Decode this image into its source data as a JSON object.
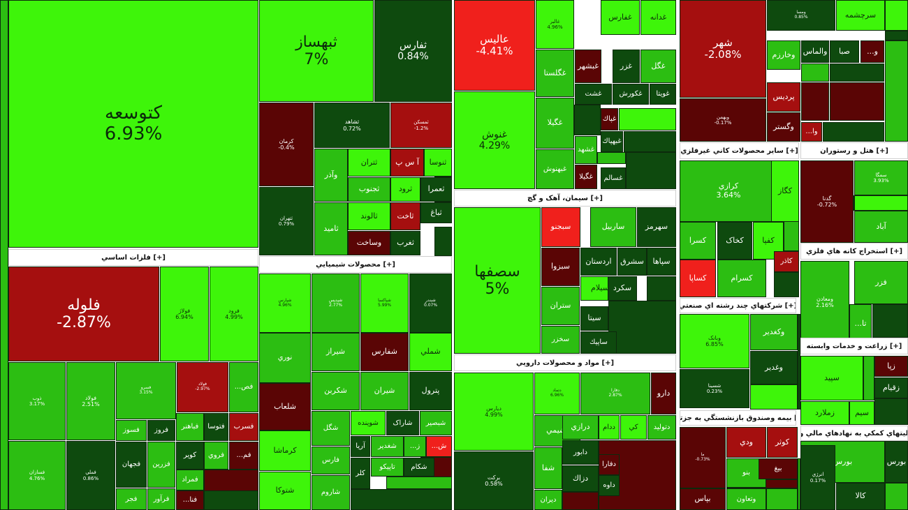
{
  "colors": {
    "bright_green": "#3ef50a",
    "green": "#2cbe12",
    "mid_green": "#1f8f1f",
    "dark_green": "#0e4a0e",
    "dark_red": "#5a0505",
    "red": "#a50f0f",
    "bright_red": "#f0201c"
  },
  "sectors": [
    {
      "label": "[+] فلزات اساسي"
    },
    {
      "label": "[+] محصولات شيميايي"
    },
    {
      "label": "[+] سيمان، آهک و گچ"
    },
    {
      "label": "[+] مواد و محصولات دارويي"
    },
    {
      "label": "[+] ساير محصولات کاني غيرفلزي"
    },
    {
      "label": "[+] هتل و رستوران"
    },
    {
      "label": "[+] شرکتهاي چند رشته اي صنعتي"
    },
    {
      "label": "[+] استخراج کانه هاي فلزي"
    },
    {
      "label": "[+] زراعت و خدمات وابسته"
    },
    {
      "label": "[+] بيمه وصندوق بازنشستگي به جزتا..."
    },
    {
      "label": "[+] فعاليتهاي کمکي به نهادهاي مالي واسط..."
    }
  ],
  "tiles": [
    {
      "name": "كتوسعه",
      "pct": "6.93%",
      "c": "bright_green"
    },
    {
      "name": "ثبهساز",
      "pct": "7%",
      "c": "bright_green"
    },
    {
      "name": "ثفارس",
      "pct": "0.84%",
      "c": "dark_green"
    },
    {
      "name": "كرمان",
      "pct": "-0.4%",
      "c": "dark_red"
    },
    {
      "name": "ثشاهد",
      "pct": "0.72%",
      "c": "dark_green"
    },
    {
      "name": "ثمسکن",
      "pct": "-1.2%",
      "c": "red"
    },
    {
      "name": "ثنوسا",
      "pct": "",
      "c": "bright_green"
    },
    {
      "name": "آ س پ",
      "pct": "",
      "c": "red"
    },
    {
      "name": "ثتران",
      "pct": "",
      "c": "bright_green"
    },
    {
      "name": "وآذر",
      "pct": "",
      "c": "green"
    },
    {
      "name": "ثعمرا",
      "pct": "",
      "c": "dark_green"
    },
    {
      "name": "ثرود",
      "pct": "",
      "c": "bright_green"
    },
    {
      "name": "ثجنوب",
      "pct": "",
      "c": "green"
    },
    {
      "name": "ثباغ",
      "pct": "",
      "c": "dark_green"
    },
    {
      "name": "ثاخت",
      "pct": "",
      "c": "red"
    },
    {
      "name": "ثالوند",
      "pct": "",
      "c": "bright_green"
    },
    {
      "name": "ثتهران",
      "pct": "0.79%",
      "c": "dark_green"
    },
    {
      "name": "ثامید",
      "pct": "",
      "c": "green"
    },
    {
      "name": "ثغرب",
      "pct": "",
      "c": "dark_green"
    },
    {
      "name": "وساخت",
      "pct": "",
      "c": "dark_red"
    },
    {
      "name": "عالیس",
      "pct": "-4.41%",
      "c": "bright_red"
    },
    {
      "name": "غنوش",
      "pct": "4.29%",
      "c": "bright_green"
    },
    {
      "name": "غالبر",
      "pct": "4.96%",
      "c": "bright_green"
    },
    {
      "name": "غفارس",
      "pct": "",
      "c": "bright_green"
    },
    {
      "name": "غدانه",
      "pct": "",
      "c": "bright_green"
    },
    {
      "name": "غگلستا",
      "pct": "",
      "c": "green"
    },
    {
      "name": "غبشهر",
      "pct": "",
      "c": "dark_red"
    },
    {
      "name": "غزر",
      "pct": "",
      "c": "dark_green"
    },
    {
      "name": "غگل",
      "pct": "",
      "c": "green"
    },
    {
      "name": "غشت",
      "pct": "",
      "c": "dark_green"
    },
    {
      "name": "غكورش",
      "pct": "",
      "c": "dark_green"
    },
    {
      "name": "غويتا",
      "pct": "",
      "c": "dark_green"
    },
    {
      "name": "غگيلا",
      "pct": "",
      "c": "green"
    },
    {
      "name": "غپاك",
      "pct": "",
      "c": "dark_red"
    },
    {
      "name": "غشهد",
      "pct": "",
      "c": "green"
    },
    {
      "name": "غبهپاك",
      "pct": "",
      "c": "dark_green"
    },
    {
      "name": "غبهنوش",
      "pct": "",
      "c": "green"
    },
    {
      "name": "غگيلا",
      "pct": "",
      "c": "dark_red"
    },
    {
      "name": "غسالم",
      "pct": "",
      "c": "dark_green"
    },
    {
      "name": "سصفها",
      "pct": "5%",
      "c": "bright_green"
    },
    {
      "name": "سبجنو",
      "pct": "",
      "c": "bright_red"
    },
    {
      "name": "ساربيل",
      "pct": "",
      "c": "green"
    },
    {
      "name": "سهرمز",
      "pct": "",
      "c": "dark_green"
    },
    {
      "name": "سبزوا",
      "pct": "",
      "c": "dark_red"
    },
    {
      "name": "اردستان",
      "pct": "",
      "c": "dark_green"
    },
    {
      "name": "سشرق",
      "pct": "",
      "c": "dark_green"
    },
    {
      "name": "سپاها",
      "pct": "",
      "c": "dark_green"
    },
    {
      "name": "سيلام",
      "pct": "",
      "c": "bright_green"
    },
    {
      "name": "سكرد",
      "pct": "",
      "c": "dark_green"
    },
    {
      "name": "ستران",
      "pct": "",
      "c": "green"
    },
    {
      "name": "سيتا",
      "pct": "",
      "c": "dark_green"
    },
    {
      "name": "سخزر",
      "pct": "",
      "c": "green"
    },
    {
      "name": "ساپيك",
      "pct": "",
      "c": "dark_green"
    },
    {
      "name": "شهر",
      "pct": "-2.08%",
      "c": "red"
    },
    {
      "name": "وبهمن",
      "pct": "-0.17%",
      "c": "dark_red"
    },
    {
      "name": "ومسا",
      "pct": "0.85%",
      "c": "dark_green"
    },
    {
      "name": "سرچشمه",
      "pct": "",
      "c": "bright_green"
    },
    {
      "name": "وخارزم",
      "pct": "",
      "c": "green"
    },
    {
      "name": "والماس",
      "pct": "",
      "c": "dark_green"
    },
    {
      "name": "صبا",
      "pct": "",
      "c": "dark_green"
    },
    {
      "name": "و...",
      "pct": "",
      "c": "dark_red"
    },
    {
      "name": "پرديس",
      "pct": "",
      "c": "red"
    },
    {
      "name": "وگستر",
      "pct": "",
      "c": "dark_red"
    },
    {
      "name": "وا...",
      "pct": "",
      "c": "red"
    },
    {
      "name": "کرازي",
      "pct": "3.64%",
      "c": "green"
    },
    {
      "name": "كگاز",
      "pct": "",
      "c": "bright_green"
    },
    {
      "name": "کسرا",
      "pct": "",
      "c": "green"
    },
    {
      "name": "کخاک",
      "pct": "",
      "c": "dark_green"
    },
    {
      "name": "کفپا",
      "pct": "",
      "c": "bright_green"
    },
    {
      "name": "كساپا",
      "pct": "",
      "c": "bright_red"
    },
    {
      "name": "کسرام",
      "pct": "",
      "c": "green"
    },
    {
      "name": "كاذر",
      "pct": "",
      "c": "red"
    },
    {
      "name": "وبانک",
      "pct": "6.85%",
      "c": "bright_green"
    },
    {
      "name": "وكغدير",
      "pct": "",
      "c": "green"
    },
    {
      "name": "وغدير",
      "pct": "",
      "c": "dark_green"
    },
    {
      "name": "شسينا",
      "pct": "0.23%",
      "c": "dark_green"
    },
    {
      "name": "گدنا",
      "pct": "-0.72%",
      "c": "dark_red"
    },
    {
      "name": "سمگا",
      "pct": "3.93%",
      "c": "green"
    },
    {
      "name": "آباد",
      "pct": "",
      "c": "green"
    },
    {
      "name": "فزر",
      "pct": "",
      "c": "green"
    },
    {
      "name": "ومعادن",
      "pct": "2.16%",
      "c": "green"
    },
    {
      "name": "تا...",
      "pct": "",
      "c": "green"
    },
    {
      "name": "سپيد",
      "pct": "",
      "c": "bright_green"
    },
    {
      "name": "زپا",
      "pct": "",
      "c": "dark_red"
    },
    {
      "name": "زقيام",
      "pct": "",
      "c": "dark_green"
    },
    {
      "name": "زملارد",
      "pct": "",
      "c": "bright_green"
    },
    {
      "name": "سيم",
      "pct": "",
      "c": "bright_green"
    },
    {
      "name": "ودي",
      "pct": "",
      "c": "red"
    },
    {
      "name": "کوثر",
      "pct": "",
      "c": "red"
    },
    {
      "name": "بنو",
      "pct": "",
      "c": "green"
    },
    {
      "name": "بيغ",
      "pct": "",
      "c": "dark_red"
    },
    {
      "name": "ما",
      "pct": "-0.73%",
      "c": "dark_red"
    },
    {
      "name": "بپاس",
      "pct": "",
      "c": "dark_red"
    },
    {
      "name": "وتعاون",
      "pct": "",
      "c": "green"
    },
    {
      "name": "بورس",
      "pct": "",
      "c": "green"
    },
    {
      "name": "بورس",
      "pct": "",
      "c": "dark_green"
    },
    {
      "name": "انرژي",
      "pct": "0.17%",
      "c": "dark_green"
    },
    {
      "name": "کالا",
      "pct": "",
      "c": "dark_green"
    },
    {
      "name": "فلوله",
      "pct": "-2.87%",
      "c": "red"
    },
    {
      "name": "فولاژ",
      "pct": "6.94%",
      "c": "bright_green"
    },
    {
      "name": "فرود",
      "pct": "4.99%",
      "c": "bright_green"
    },
    {
      "name": "ذوب",
      "pct": "3.17%",
      "c": "green"
    },
    {
      "name": "فولاد",
      "pct": "2.51%",
      "c": "green"
    },
    {
      "name": "فسرو",
      "pct": "3.15%",
      "c": "green"
    },
    {
      "name": "فولاد",
      "pct": "-2.97%",
      "c": "red"
    },
    {
      "name": "فص...",
      "pct": "",
      "c": "green"
    },
    {
      "name": "فسوز",
      "pct": "",
      "c": "green"
    },
    {
      "name": "فروز",
      "pct": "",
      "c": "dark_green"
    },
    {
      "name": "فباهنر",
      "pct": "",
      "c": "green"
    },
    {
      "name": "فتوسا",
      "pct": "",
      "c": "dark_green"
    },
    {
      "name": "فسرب",
      "pct": "",
      "c": "red"
    },
    {
      "name": "فجهان",
      "pct": "",
      "c": "dark_green"
    },
    {
      "name": "فزرين",
      "pct": "",
      "c": "green"
    },
    {
      "name": "كوير",
      "pct": "",
      "c": "dark_green"
    },
    {
      "name": "فروي",
      "pct": "",
      "c": "green"
    },
    {
      "name": "فم...",
      "pct": "",
      "c": "dark_red"
    },
    {
      "name": "فسازان",
      "pct": "4.76%",
      "c": "green"
    },
    {
      "name": "فملي",
      "pct": "0.86%",
      "c": "dark_green"
    },
    {
      "name": "فمراد",
      "pct": "",
      "c": "green"
    },
    {
      "name": "فجر",
      "pct": "",
      "c": "green"
    },
    {
      "name": "فرآور",
      "pct": "",
      "c": "green"
    },
    {
      "name": "فنا...",
      "pct": "",
      "c": "dark_red"
    },
    {
      "name": "شپارس",
      "pct": "4.96%",
      "c": "bright_green"
    },
    {
      "name": "شپديس",
      "pct": "2.77%",
      "c": "green"
    },
    {
      "name": "شپاكسا",
      "pct": "5.99%",
      "c": "bright_green"
    },
    {
      "name": "شبندر",
      "pct": "0.07%",
      "c": "dark_green"
    },
    {
      "name": "نوري",
      "pct": "",
      "c": "green"
    },
    {
      "name": "شيراز",
      "pct": "",
      "c": "green"
    },
    {
      "name": "شفارس",
      "pct": "",
      "c": "dark_red"
    },
    {
      "name": "شملي",
      "pct": "",
      "c": "bright_green"
    },
    {
      "name": "شكربن",
      "pct": "",
      "c": "green"
    },
    {
      "name": "شيران",
      "pct": "",
      "c": "green"
    },
    {
      "name": "پترول",
      "pct": "",
      "c": "dark_green"
    },
    {
      "name": "شلعاب",
      "pct": "",
      "c": "dark_red"
    },
    {
      "name": "شگل",
      "pct": "",
      "c": "green"
    },
    {
      "name": "شوينده",
      "pct": "",
      "c": "bright_green"
    },
    {
      "name": "شاراک",
      "pct": "",
      "c": "dark_green"
    },
    {
      "name": "شبصير",
      "pct": "",
      "c": "green"
    },
    {
      "name": "كرماشا",
      "pct": "",
      "c": "bright_green"
    },
    {
      "name": "آريا",
      "pct": "",
      "c": "dark_green"
    },
    {
      "name": "شغدير",
      "pct": "",
      "c": "green"
    },
    {
      "name": "ز...",
      "pct": "",
      "c": "green"
    },
    {
      "name": "ش...",
      "pct": "",
      "c": "bright_red"
    },
    {
      "name": "فارس",
      "pct": "",
      "c": "green"
    },
    {
      "name": "كلر",
      "pct": "",
      "c": "dark_green"
    },
    {
      "name": "تاپيکو",
      "pct": "",
      "c": "green"
    },
    {
      "name": "شكام",
      "pct": "",
      "c": "dark_green"
    },
    {
      "name": "شتوكا",
      "pct": "",
      "c": "bright_green"
    },
    {
      "name": "شاروم",
      "pct": "",
      "c": "green"
    },
    {
      "name": "ديارس",
      "pct": "4.99%",
      "c": "bright_green"
    },
    {
      "name": "دتماد",
      "pct": "6.96%",
      "c": "bright_green"
    },
    {
      "name": "دفارا",
      "pct": "2.87%",
      "c": "green"
    },
    {
      "name": "دارو",
      "pct": "",
      "c": "dark_red"
    },
    {
      "name": "نشيمي",
      "pct": "",
      "c": "green"
    },
    {
      "name": "درازي",
      "pct": "",
      "c": "green"
    },
    {
      "name": "ددام",
      "pct": "",
      "c": "bright_green"
    },
    {
      "name": "كي",
      "pct": "",
      "c": "bright_green"
    },
    {
      "name": "دتوليد",
      "pct": "",
      "c": "green"
    },
    {
      "name": "دابور",
      "pct": "",
      "c": "dark_green"
    },
    {
      "name": "شفا",
      "pct": "",
      "c": "green"
    },
    {
      "name": "دزاك",
      "pct": "",
      "c": "dark_green"
    },
    {
      "name": "دفارا",
      "pct": "",
      "c": "dark_red"
    },
    {
      "name": "داوه",
      "pct": "",
      "c": "dark_green"
    },
    {
      "name": "بركت",
      "pct": "0.58%",
      "c": "dark_green"
    },
    {
      "name": "ديران",
      "pct": "",
      "c": "green"
    }
  ]
}
